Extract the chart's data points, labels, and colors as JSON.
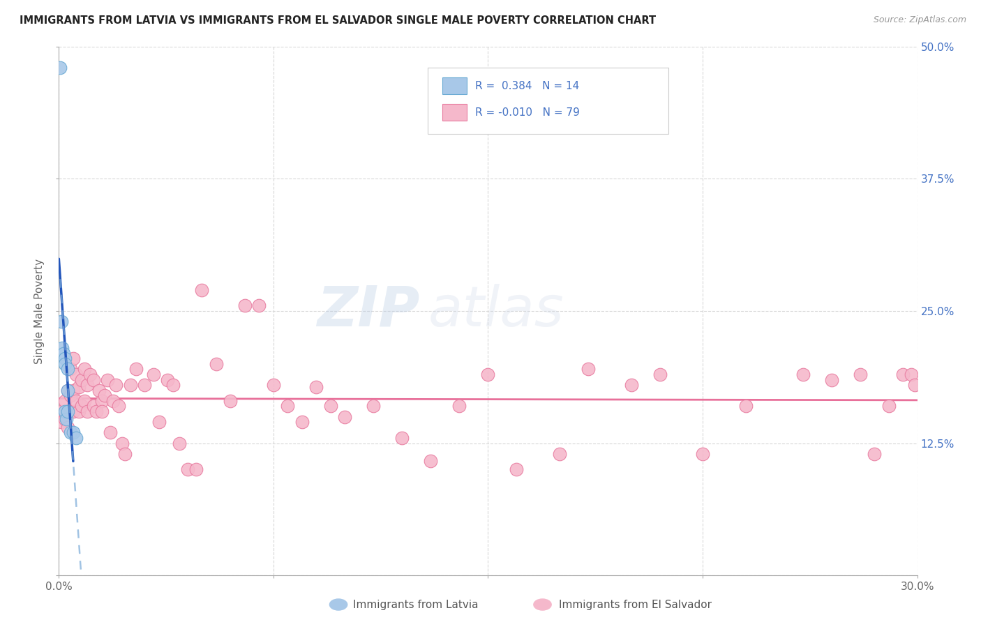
{
  "title": "IMMIGRANTS FROM LATVIA VS IMMIGRANTS FROM EL SALVADOR SINGLE MALE POVERTY CORRELATION CHART",
  "source": "Source: ZipAtlas.com",
  "ylabel": "Single Male Poverty",
  "xlim": [
    0.0,
    0.3
  ],
  "ylim": [
    0.0,
    0.5
  ],
  "xticks": [
    0.0,
    0.075,
    0.15,
    0.225,
    0.3
  ],
  "xticklabels": [
    "0.0%",
    "",
    "",
    "",
    "30.0%"
  ],
  "yticks": [
    0.0,
    0.125,
    0.25,
    0.375,
    0.5
  ],
  "right_yticklabels": [
    "",
    "12.5%",
    "25.0%",
    "37.5%",
    "50.0%"
  ],
  "latvia_color": "#a8c8e8",
  "latvia_edge_color": "#6aaad4",
  "el_salvador_color": "#f5b8cb",
  "el_salvador_edge_color": "#e87ca0",
  "latvia_line_color": "#2255bb",
  "latvia_dash_color": "#7aaad8",
  "el_salvador_line_color": "#e8709a",
  "R_latvia": 0.384,
  "N_latvia": 14,
  "R_el_salvador": -0.01,
  "N_el_salvador": 79,
  "watermark_zip": "ZIP",
  "watermark_atlas": "atlas",
  "background_color": "#ffffff",
  "latvia_x": [
    0.0005,
    0.001,
    0.0012,
    0.0015,
    0.002,
    0.002,
    0.0022,
    0.0025,
    0.003,
    0.003,
    0.003,
    0.004,
    0.005,
    0.006
  ],
  "latvia_y": [
    0.48,
    0.24,
    0.215,
    0.21,
    0.205,
    0.2,
    0.155,
    0.148,
    0.195,
    0.175,
    0.155,
    0.135,
    0.135,
    0.13
  ],
  "el_salvador_x": [
    0.001,
    0.001,
    0.002,
    0.002,
    0.003,
    0.003,
    0.003,
    0.004,
    0.004,
    0.004,
    0.005,
    0.005,
    0.005,
    0.006,
    0.006,
    0.007,
    0.007,
    0.008,
    0.008,
    0.009,
    0.009,
    0.01,
    0.01,
    0.011,
    0.012,
    0.012,
    0.013,
    0.014,
    0.015,
    0.015,
    0.016,
    0.017,
    0.018,
    0.019,
    0.02,
    0.021,
    0.022,
    0.023,
    0.025,
    0.027,
    0.03,
    0.033,
    0.035,
    0.038,
    0.04,
    0.042,
    0.045,
    0.048,
    0.05,
    0.055,
    0.06,
    0.065,
    0.07,
    0.075,
    0.08,
    0.085,
    0.09,
    0.095,
    0.1,
    0.11,
    0.12,
    0.13,
    0.14,
    0.15,
    0.16,
    0.175,
    0.185,
    0.2,
    0.21,
    0.225,
    0.24,
    0.26,
    0.27,
    0.28,
    0.285,
    0.29,
    0.295,
    0.298,
    0.299
  ],
  "el_salvador_y": [
    0.155,
    0.145,
    0.165,
    0.148,
    0.175,
    0.155,
    0.14,
    0.195,
    0.17,
    0.155,
    0.205,
    0.175,
    0.155,
    0.19,
    0.165,
    0.178,
    0.155,
    0.185,
    0.16,
    0.195,
    0.165,
    0.18,
    0.155,
    0.19,
    0.185,
    0.16,
    0.155,
    0.175,
    0.165,
    0.155,
    0.17,
    0.185,
    0.135,
    0.165,
    0.18,
    0.16,
    0.125,
    0.115,
    0.18,
    0.195,
    0.18,
    0.19,
    0.145,
    0.185,
    0.18,
    0.125,
    0.1,
    0.1,
    0.27,
    0.2,
    0.165,
    0.255,
    0.255,
    0.18,
    0.16,
    0.145,
    0.178,
    0.16,
    0.15,
    0.16,
    0.13,
    0.108,
    0.16,
    0.19,
    0.1,
    0.115,
    0.195,
    0.18,
    0.19,
    0.115,
    0.16,
    0.19,
    0.185,
    0.19,
    0.115,
    0.16,
    0.19,
    0.19,
    0.18
  ]
}
